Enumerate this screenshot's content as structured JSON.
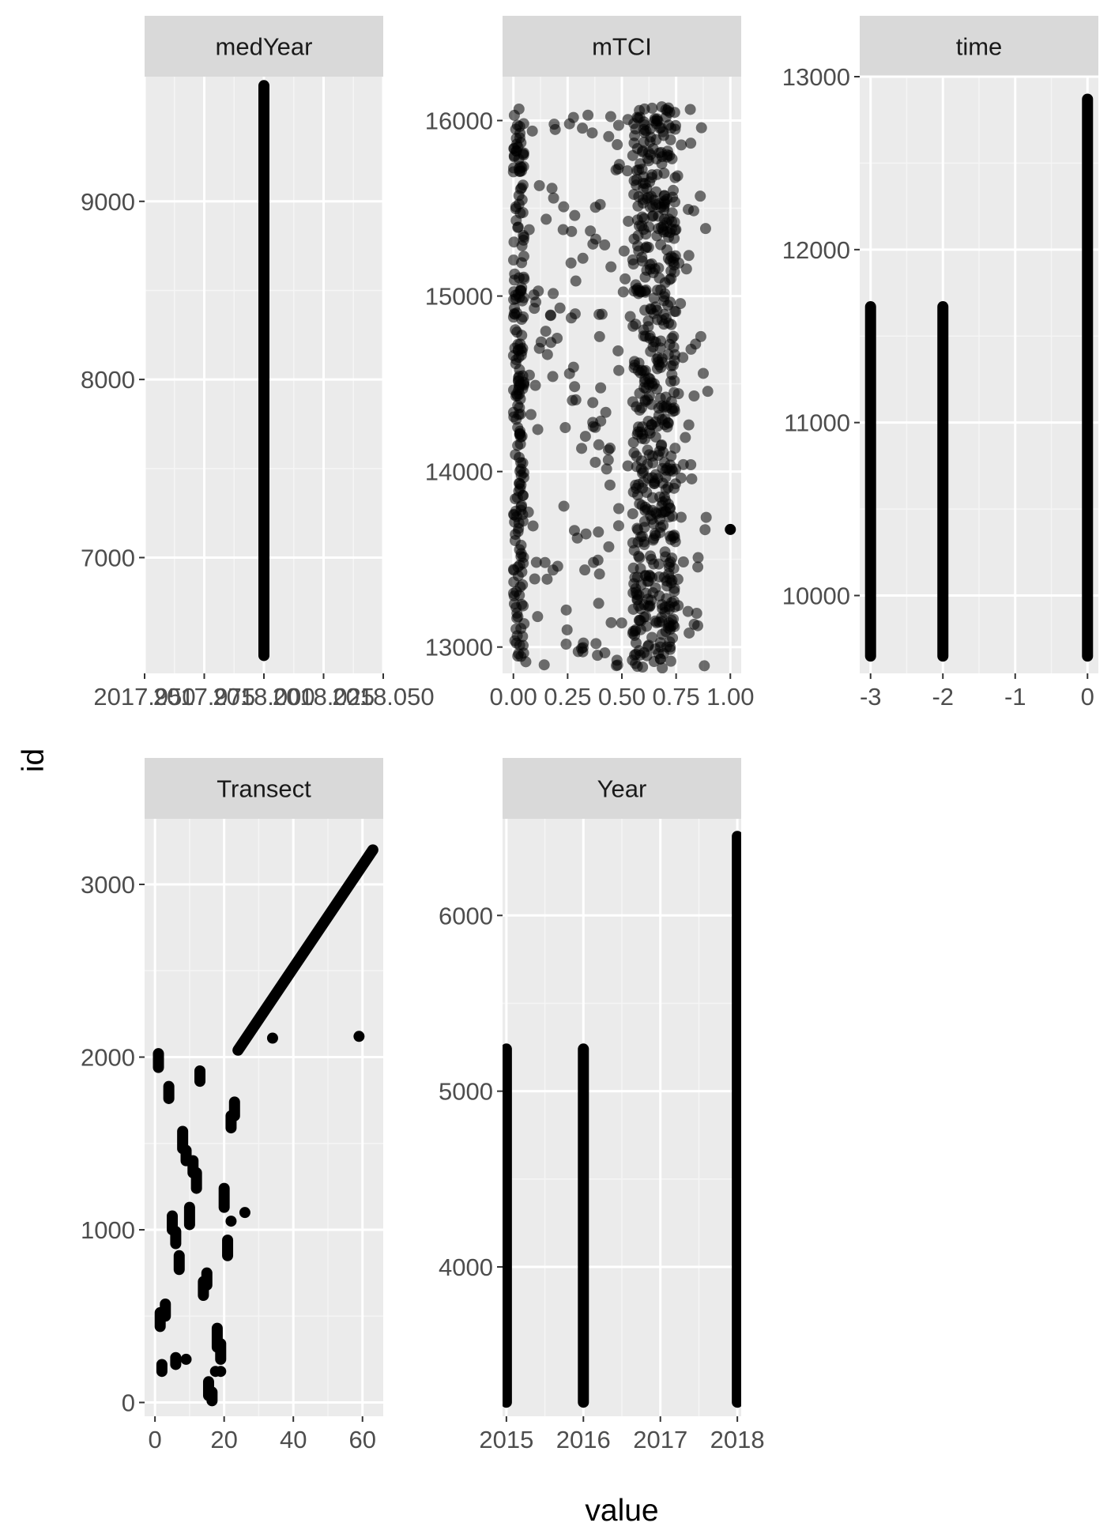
{
  "chart_data": {
    "type": "scatter",
    "xlabel": "value",
    "ylabel": "id",
    "facet_layout": "wrap, 3 columns, free scales",
    "panels": [
      {
        "strip": "medYear",
        "x_ticks": [
          "2017.950",
          "2017.975",
          "2018.000",
          "2018.025",
          "2018.050"
        ],
        "x_range": [
          2017.95,
          2018.05
        ],
        "y_ticks": [
          "7000",
          "8000",
          "9000"
        ],
        "y_range": [
          6350,
          9700
        ],
        "description": "all points at x = 2018.000",
        "segments": [
          {
            "x": 2018.0,
            "y_from": 6450,
            "y_to": 9650
          }
        ],
        "points": []
      },
      {
        "strip": "mTCI",
        "x_ticks": [
          "0.00",
          "0.25",
          "0.50",
          "0.75",
          "1.00"
        ],
        "x_range": [
          -0.05,
          1.05
        ],
        "y_ticks": [
          "13000",
          "14000",
          "15000",
          "16000"
        ],
        "y_range": [
          12850,
          16250
        ],
        "description": "scattered semi-transparent points, x roughly 0 to 0.9, denser near 0.55 to 0.75",
        "segments": [],
        "points": [
          {
            "x": 1.0,
            "y": 13670
          }
        ]
      },
      {
        "strip": "time",
        "x_ticks": [
          "-3",
          "-2",
          "-1",
          "0"
        ],
        "x_range": [
          -3.15,
          0.15
        ],
        "y_ticks": [
          "10000",
          "11000",
          "12000",
          "13000"
        ],
        "y_range": [
          9550,
          13000
        ],
        "description": "dense vertical bands at x = -3, -2 and 0",
        "segments": [
          {
            "x": -3,
            "y_from": 9650,
            "y_to": 11670
          },
          {
            "x": -2,
            "y_from": 9650,
            "y_to": 11670
          },
          {
            "x": 0,
            "y_from": 9650,
            "y_to": 12870
          }
        ],
        "points": []
      },
      {
        "strip": "Transect",
        "x_ticks": [
          "0",
          "20",
          "40",
          "60"
        ],
        "x_range": [
          -3,
          66
        ],
        "y_ticks": [
          "0",
          "1000",
          "2000",
          "3000"
        ],
        "y_range": [
          -80,
          3380
        ],
        "description": "clusters for transects 1-27, then a diagonal line from (24, 2040) to (63, 3200), plus outliers",
        "segments": [
          {
            "x": 1,
            "y_from": 1940,
            "y_to": 2020
          },
          {
            "x": 1.5,
            "y_from": 440,
            "y_to": 520
          },
          {
            "x": 2,
            "y_from": 180,
            "y_to": 220
          },
          {
            "x": 3,
            "y_from": 500,
            "y_to": 570
          },
          {
            "x": 4,
            "y_from": 1760,
            "y_to": 1830
          },
          {
            "x": 5,
            "y_from": 1000,
            "y_to": 1080
          },
          {
            "x": 6,
            "y_from": 920,
            "y_to": 990
          },
          {
            "x": 6,
            "y_from": 220,
            "y_to": 260
          },
          {
            "x": 7,
            "y_from": 770,
            "y_to": 850
          },
          {
            "x": 8,
            "y_from": 1470,
            "y_to": 1570
          },
          {
            "x": 9,
            "y_from": 1400,
            "y_to": 1460
          },
          {
            "x": 10,
            "y_from": 1030,
            "y_to": 1130
          },
          {
            "x": 11,
            "y_from": 1330,
            "y_to": 1400
          },
          {
            "x": 12,
            "y_from": 1240,
            "y_to": 1330
          },
          {
            "x": 13,
            "y_from": 1860,
            "y_to": 1920
          },
          {
            "x": 14,
            "y_from": 620,
            "y_to": 700
          },
          {
            "x": 15,
            "y_from": 680,
            "y_to": 750
          },
          {
            "x": 15.5,
            "y_from": 40,
            "y_to": 120
          },
          {
            "x": 16.5,
            "y_from": 10,
            "y_to": 60
          },
          {
            "x": 18,
            "y_from": 320,
            "y_to": 430
          },
          {
            "x": 19,
            "y_from": 250,
            "y_to": 340
          },
          {
            "x": 20,
            "y_from": 1130,
            "y_to": 1240
          },
          {
            "x": 21,
            "y_from": 850,
            "y_to": 940
          },
          {
            "x": 22,
            "y_from": 1590,
            "y_to": 1660
          },
          {
            "x": 23,
            "y_from": 1660,
            "y_to": 1740
          }
        ],
        "points": [
          {
            "x": 9,
            "y": 250
          },
          {
            "x": 17.5,
            "y": 180
          },
          {
            "x": 19,
            "y": 180
          },
          {
            "x": 22,
            "y": 1050
          },
          {
            "x": 26,
            "y": 1100
          },
          {
            "x": 34,
            "y": 2110
          },
          {
            "x": 59,
            "y": 2120
          }
        ],
        "lines": [
          {
            "x1": 24,
            "y1": 2040,
            "x2": 63,
            "y2": 3200
          }
        ]
      },
      {
        "strip": "Year",
        "x_ticks": [
          "2015",
          "2016",
          "2017",
          "2018"
        ],
        "x_range": [
          2014.95,
          2018.05
        ],
        "y_ticks": [
          "4000",
          "5000",
          "6000"
        ],
        "y_range": [
          3150,
          6550
        ],
        "description": "dense vertical bands at 2015, 2016 and 2018",
        "segments": [
          {
            "x": 2015,
            "y_from": 3230,
            "y_to": 5240
          },
          {
            "x": 2016,
            "y_from": 3230,
            "y_to": 5240
          },
          {
            "x": 2018,
            "y_from": 3230,
            "y_to": 6450
          }
        ],
        "points": []
      }
    ]
  }
}
